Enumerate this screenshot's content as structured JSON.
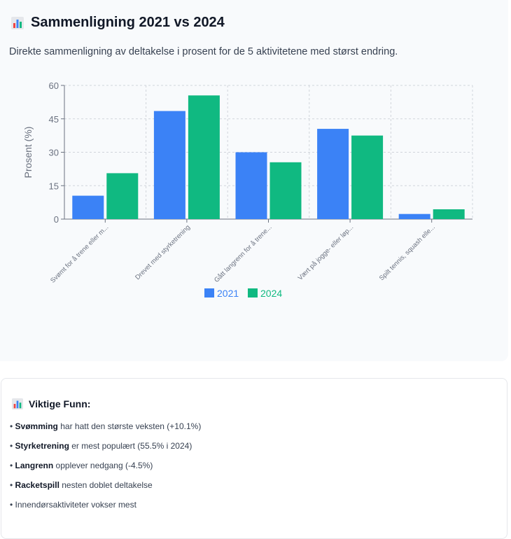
{
  "header": {
    "title": "Sammenligning 2021 vs 2024",
    "subtitle": "Direkte sammenligning av deltakelse i prosent for de 5 aktivitetene med størst endring."
  },
  "chart_data": {
    "type": "bar",
    "categories": [
      "Svømt for å trene eller m...",
      "Drevet med styrketrening",
      "Gått langrenn for å trene...",
      "Vært på jogge- eller løp...",
      "Spilt tennis, squash elle..."
    ],
    "series": [
      {
        "name": "2021",
        "color": "#3b82f6",
        "values": [
          10.5,
          48.5,
          30.0,
          40.5,
          2.3
        ]
      },
      {
        "name": "2024",
        "color": "#10b981",
        "values": [
          20.6,
          55.5,
          25.5,
          37.5,
          4.4
        ]
      }
    ],
    "ylabel": "Prosent (%)",
    "ylim": [
      0,
      60
    ],
    "yticks": [
      "0",
      "15",
      "30",
      "45",
      "60"
    ],
    "grid": true,
    "legend": "bottom-center"
  },
  "findings": {
    "title": "Viktige Funn:",
    "items": [
      {
        "bold": "Svømming",
        "text": " har hatt den største veksten (+10.1%)"
      },
      {
        "bold": "Styrketrening",
        "text": " er mest populært (55.5% i 2024)"
      },
      {
        "bold": "Langrenn",
        "text": " opplever nedgang (-4.5%)"
      },
      {
        "bold": "Racketspill",
        "text": " nesten doblet deltakelse"
      },
      {
        "bold": "",
        "text": "Innendørsaktiviteter vokser mest"
      }
    ]
  }
}
